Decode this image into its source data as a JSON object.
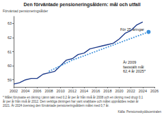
{
  "chart_data": {
    "type": "line",
    "title": "Den förväntade pensioneringsåldern: mål och utfall",
    "ylabel": "Förväntad pensioneringsålder",
    "xlim": [
      2002,
      2026
    ],
    "xticks": [
      2002,
      2004,
      2006,
      2008,
      2010,
      2012,
      2014,
      2016,
      2018,
      2020,
      2022,
      2024,
      2026
    ],
    "ylim": [
      58.5,
      63.5
    ],
    "yticks": [
      59,
      60,
      61,
      62,
      63
    ],
    "grid": false,
    "series": [
      {
        "color": "#1d3a8a",
        "line_style": "solid",
        "marker": "none",
        "x": [
          2002,
          2003,
          2004,
          2005,
          2006,
          2007,
          2008,
          2009,
          2010,
          2011,
          2012,
          2013,
          2014,
          2015,
          2016,
          2017,
          2018,
          2019,
          2020,
          2021,
          2022,
          2023,
          2024
        ],
        "values": [
          58.7,
          58.8,
          59.0,
          59.1,
          59.1,
          59.4,
          59.5,
          59.6,
          60.0,
          60.4,
          60.5,
          60.8,
          60.9,
          61.2,
          61.3,
          61.4,
          61.5,
          61.6,
          61.9,
          62.3,
          62.5,
          62.9,
          63.1
        ]
      },
      {
        "color": "#3a8fdb",
        "line_style": "dotted",
        "marker": "circle",
        "x": [
          2008,
          2012,
          2025
        ],
        "values": [
          59.6,
          60.4,
          62.4
        ]
      }
    ],
    "annotations": [
      {
        "text": "För 25-åringar"
      },
      {
        "text": "År 2009\nfastställt mål\n62,4 år 2025*"
      }
    ],
    "footnote": "* Målet förutsatte en ökning i jämn takt med 0,2 år per år från nivå år 2008 och en ökning med drygt 0,1 år per år från nivå år 2012. Den verkliga ökningen har varit snabbare och målet uppnåddes redan år 2021. År 2024 översteg den förväntade pensioneringsåldern målet med 0,7 år.",
    "source": "Källa: Pensionsskyddscentralen"
  }
}
